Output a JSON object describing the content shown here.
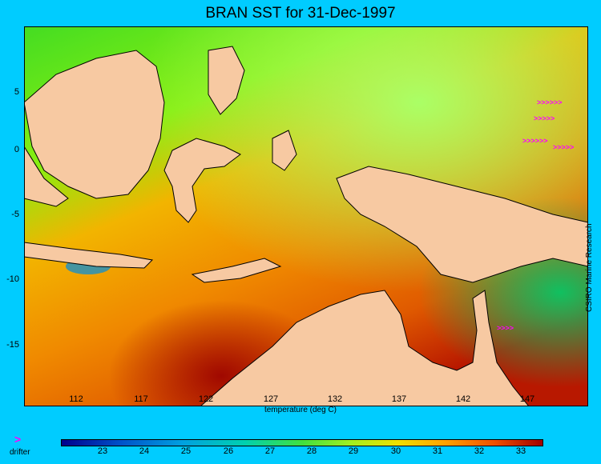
{
  "title": "BRAN SST for 31-Dec-1997",
  "y_ticks": [
    "5",
    "0",
    "-5",
    "-10",
    "-15"
  ],
  "x_ticks": [
    "112",
    "117",
    "122",
    "127",
    "132",
    "137",
    "142",
    "147"
  ],
  "colorbar": {
    "label": "temperature (deg C)",
    "ticks": [
      "23",
      "24",
      "25",
      "26",
      "27",
      "28",
      "29",
      "30",
      "31",
      "32",
      "33"
    ],
    "range": [
      22,
      33.5
    ]
  },
  "legend": {
    "drifter_symbol": ">",
    "drifter_label": "drifter"
  },
  "credit": "CSIRO Marine Research",
  "colors": {
    "background": "#00ccff",
    "land": "#f7c9a2",
    "drifter": "#ff00ff",
    "sea_cool": "#44dd22",
    "sea_warm": "#ff8c00",
    "sea_hot": "#b81800"
  }
}
